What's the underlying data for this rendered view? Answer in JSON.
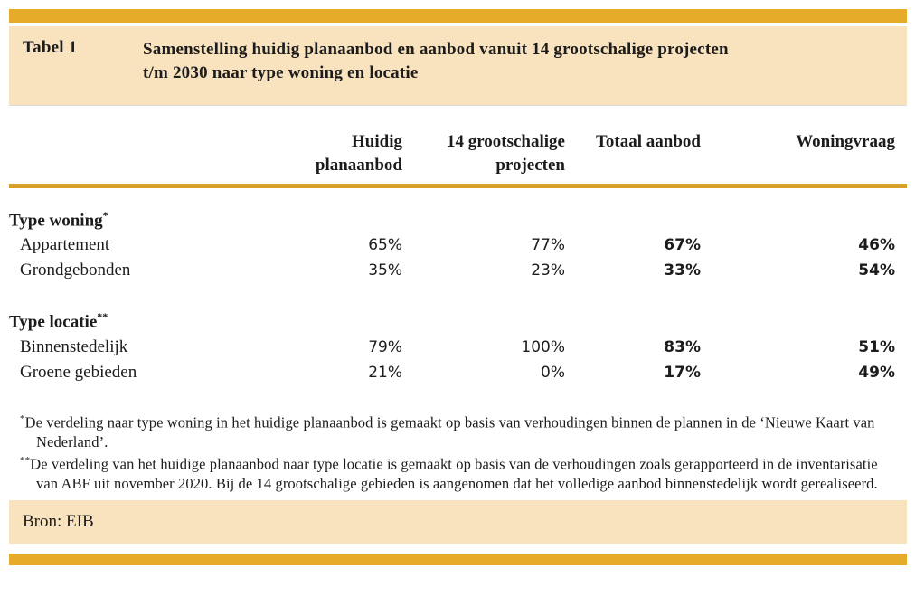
{
  "page": {
    "label": "Tabel 1",
    "title": "Samenstelling huidig planaanbod en aanbod vanuit 14 grootschalige projecten t/m 2030 naar type woning en locatie",
    "columns": [
      "Huidig planaanbod",
      "14 grootschalige projecten",
      "Totaal aanbod",
      "Woningvraag"
    ],
    "sections": [
      {
        "heading": "Type woning",
        "marker": "*",
        "rows": [
          {
            "label": "Appartement",
            "values": [
              "65%",
              "77%",
              "67%",
              "46%"
            ]
          },
          {
            "label": "Grondgebonden",
            "values": [
              "35%",
              "23%",
              "33%",
              "54%"
            ]
          }
        ]
      },
      {
        "heading": "Type locatie",
        "marker": "**",
        "rows": [
          {
            "label": "Binnenstedelijk",
            "values": [
              "79%",
              "100%",
              "83%",
              "51%"
            ]
          },
          {
            "label": "Groene gebieden",
            "values": [
              "21%",
              "0%",
              "17%",
              "49%"
            ]
          }
        ]
      }
    ],
    "footnotes": [
      {
        "marker": "*",
        "text": "De verdeling naar type woning in het huidige planaanbod is gemaakt op basis van verhoudingen binnen de plannen in de ‘Nieuwe Kaart van Nederland’."
      },
      {
        "marker": "**",
        "text": "De verdeling van het huidige planaanbod naar type locatie is gemaakt op basis van de verhoudingen zoals gerapporteerd in de inventarisatie van ABF uit november 2020. Bij de 14 grootschalige gebieden is aangenomen dat het volledige aanbod binnenstedelijk wordt gerealiseerd."
      }
    ],
    "source": "Bron: EIB"
  },
  "colors": {
    "gold": "#E6AB28",
    "rule": "#D99E27",
    "band": "#F9E2BE"
  },
  "chart_data": {
    "type": "table",
    "title": "Samenstelling huidig planaanbod en aanbod vanuit 14 grootschalige projecten t/m 2030 naar type woning en locatie",
    "columns": [
      "Huidig planaanbod",
      "14 grootschalige projecten",
      "Totaal aanbod",
      "Woningvraag"
    ],
    "rows": [
      {
        "group": "Type woning",
        "label": "Appartement",
        "values": [
          65,
          77,
          67,
          46
        ]
      },
      {
        "group": "Type woning",
        "label": "Grondgebonden",
        "values": [
          35,
          23,
          33,
          54
        ]
      },
      {
        "group": "Type locatie",
        "label": "Binnenstedelijk",
        "values": [
          79,
          100,
          83,
          51
        ]
      },
      {
        "group": "Type locatie",
        "label": "Groene gebieden",
        "values": [
          21,
          0,
          17,
          49
        ]
      }
    ],
    "unit": "%",
    "source": "Bron: EIB"
  }
}
